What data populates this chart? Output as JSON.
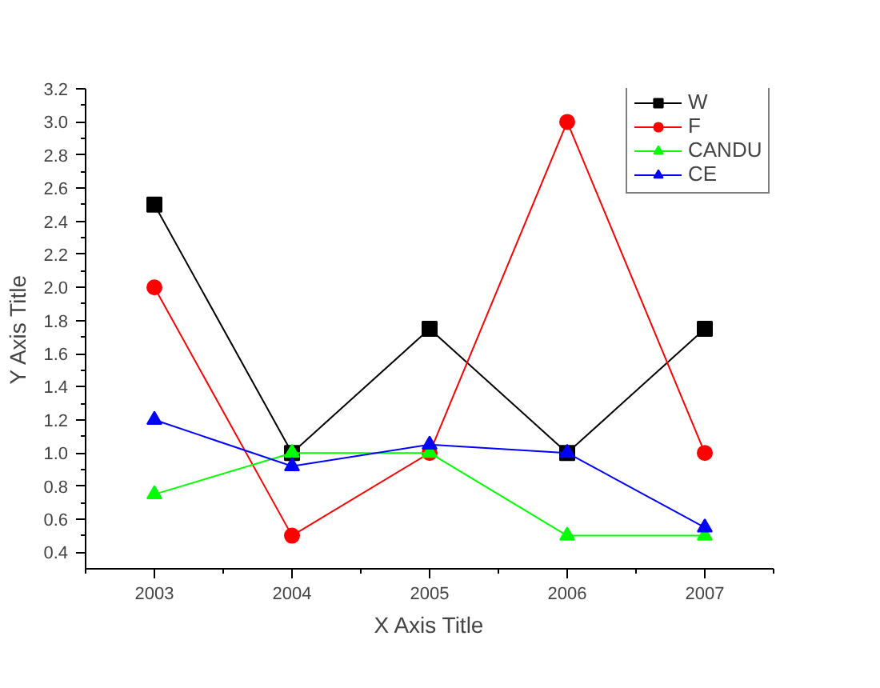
{
  "chart_data": {
    "type": "line",
    "xlabel": "X Axis Title",
    "ylabel": "Y Axis Title",
    "x": [
      2003,
      2004,
      2005,
      2006,
      2007
    ],
    "series": [
      {
        "name": "W",
        "color": "#000000",
        "marker": "square",
        "values": [
          2.5,
          1.0,
          1.75,
          1.0,
          1.75
        ]
      },
      {
        "name": "F",
        "color": "#ff0000",
        "marker": "circle",
        "values": [
          2.0,
          0.5,
          1.0,
          3.0,
          1.0
        ]
      },
      {
        "name": "CANDU",
        "color": "#00ff00",
        "marker": "triangle",
        "values": [
          0.75,
          1.0,
          1.0,
          0.5,
          0.5
        ]
      },
      {
        "name": "CE",
        "color": "#0000ff",
        "marker": "triangle",
        "values": [
          1.2,
          0.92,
          1.05,
          1.0,
          0.55
        ]
      }
    ],
    "xlim": [
      2002.5,
      2007.5
    ],
    "xticks": [
      2003,
      2004,
      2005,
      2006,
      2007
    ],
    "ylim": [
      0.3,
      3.2
    ],
    "yticks": [
      0.4,
      0.6,
      0.8,
      {
        "value": 1,
        "label": "1.0"
      },
      1.2,
      1.4,
      1.6,
      1.8,
      {
        "value": 2,
        "label": "2.0"
      },
      2.2,
      2.4,
      2.6,
      2.8,
      {
        "value": 3,
        "label": "3.0"
      },
      3.2
    ],
    "grid": false,
    "legend": "top right",
    "line_style": "solid"
  }
}
